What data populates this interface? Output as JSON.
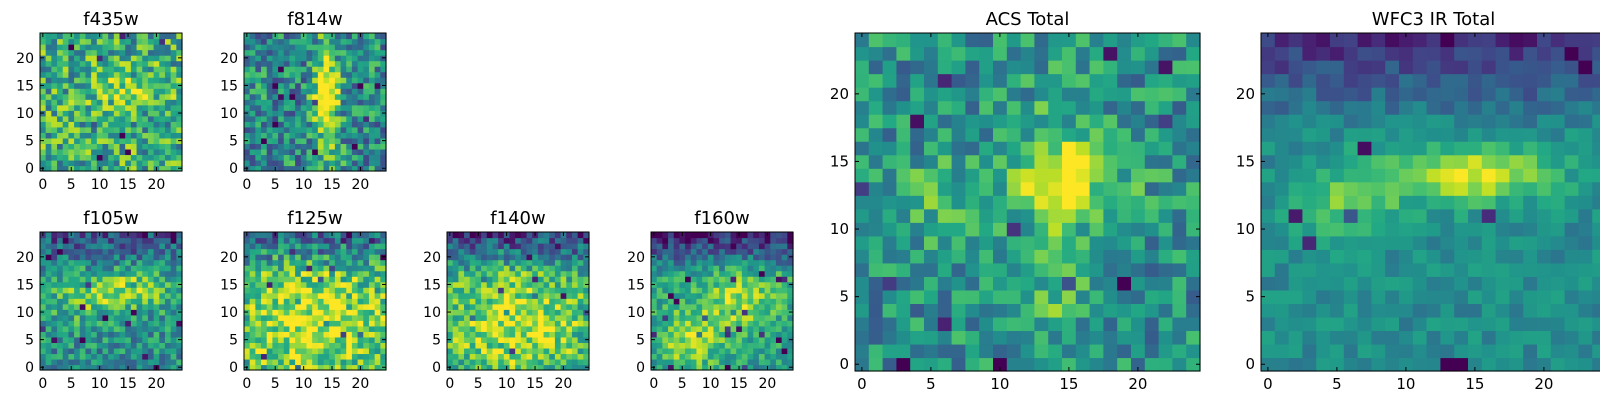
{
  "chart_data": [
    {
      "type": "heatmap",
      "title": "f435w",
      "xlim": [
        0,
        24
      ],
      "ylim": [
        0,
        24
      ],
      "xticks": [
        "0",
        "5",
        "10",
        "15",
        "20"
      ],
      "yticks": [
        "0",
        "5",
        "10",
        "15",
        "20"
      ],
      "colormap": "viridis",
      "grid": false,
      "features": [
        {
          "cx": 15,
          "cy": 14,
          "sx": 4,
          "sy": 2,
          "amp": 0.25
        }
      ],
      "base": 0.62,
      "noise": 0.3,
      "seed": 11
    },
    {
      "type": "heatmap",
      "title": "f814w",
      "xlim": [
        0,
        24
      ],
      "ylim": [
        0,
        24
      ],
      "xticks": [
        "0",
        "5",
        "10",
        "15",
        "20"
      ],
      "yticks": [
        "0",
        "5",
        "10",
        "15",
        "20"
      ],
      "colormap": "viridis",
      "grid": false,
      "features": [
        {
          "cx": 14,
          "cy": 12,
          "sx": 1.5,
          "sy": 9,
          "amp": 0.45
        },
        {
          "cx": 14,
          "cy": 14,
          "sx": 2,
          "sy": 2,
          "amp": 0.25
        }
      ],
      "base": 0.48,
      "noise": 0.28,
      "seed": 23
    },
    {
      "type": "heatmap",
      "title": "f105w",
      "xlim": [
        0,
        24
      ],
      "ylim": [
        0,
        24
      ],
      "xticks": [
        "0",
        "5",
        "10",
        "15",
        "20"
      ],
      "yticks": [
        "0",
        "5",
        "10",
        "15",
        "20"
      ],
      "colormap": "viridis",
      "grid": false,
      "features": [
        {
          "cx": 15,
          "cy": 14,
          "sx": 5,
          "sy": 2.5,
          "amp": 0.35
        },
        {
          "cx": 6,
          "cy": 12,
          "sx": 4,
          "sy": 3,
          "amp": 0.2
        }
      ],
      "base": 0.5,
      "noise": 0.22,
      "topdark": 0.25,
      "seed": 37
    },
    {
      "type": "heatmap",
      "title": "f125w",
      "xlim": [
        0,
        24
      ],
      "ylim": [
        0,
        24
      ],
      "xticks": [
        "0",
        "5",
        "10",
        "15",
        "20"
      ],
      "yticks": [
        "0",
        "5",
        "10",
        "15",
        "20"
      ],
      "colormap": "viridis",
      "grid": false,
      "features": [
        {
          "cx": 12,
          "cy": 8,
          "sx": 9,
          "sy": 7,
          "amp": 0.3
        }
      ],
      "base": 0.62,
      "noise": 0.26,
      "topdark": 0.3,
      "seed": 41
    },
    {
      "type": "heatmap",
      "title": "f140w",
      "xlim": [
        0,
        24
      ],
      "ylim": [
        0,
        24
      ],
      "xticks": [
        "0",
        "5",
        "10",
        "15",
        "20"
      ],
      "yticks": [
        "0",
        "5",
        "10",
        "15",
        "20"
      ],
      "colormap": "viridis",
      "grid": false,
      "features": [
        {
          "cx": 12,
          "cy": 8,
          "sx": 9,
          "sy": 7,
          "amp": 0.32
        }
      ],
      "base": 0.58,
      "noise": 0.24,
      "topdark": 0.4,
      "seed": 53
    },
    {
      "type": "heatmap",
      "title": "f160w",
      "xlim": [
        0,
        24
      ],
      "ylim": [
        0,
        24
      ],
      "xticks": [
        "0",
        "5",
        "10",
        "15",
        "20"
      ],
      "yticks": [
        "0",
        "5",
        "10",
        "15",
        "20"
      ],
      "colormap": "viridis",
      "grid": false,
      "features": [
        {
          "cx": 15,
          "cy": 12,
          "sx": 5,
          "sy": 4,
          "amp": 0.3
        },
        {
          "cx": 6,
          "cy": 5,
          "sx": 4,
          "sy": 4,
          "amp": 0.3
        }
      ],
      "base": 0.55,
      "noise": 0.18,
      "topdark": 0.45,
      "seed": 67
    },
    {
      "type": "heatmap",
      "title": "ACS Total",
      "xlim": [
        0,
        24
      ],
      "ylim": [
        0,
        24
      ],
      "xticks": [
        "0",
        "5",
        "10",
        "15",
        "20"
      ],
      "yticks": [
        "0",
        "5",
        "10",
        "15",
        "20"
      ],
      "colormap": "viridis",
      "grid": false,
      "features": [
        {
          "cx": 15,
          "cy": 14,
          "sx": 3,
          "sy": 2,
          "amp": 0.4
        },
        {
          "cx": 14,
          "cy": 10,
          "sx": 1.5,
          "sy": 8,
          "amp": 0.2
        },
        {
          "cx": 6,
          "cy": 12,
          "sx": 3,
          "sy": 2,
          "amp": 0.2
        }
      ],
      "base": 0.5,
      "noise": 0.22,
      "seed": 79
    },
    {
      "type": "heatmap",
      "title": "WFC3 IR Total",
      "xlim": [
        0,
        24
      ],
      "ylim": [
        0,
        24
      ],
      "xticks": [
        "0",
        "5",
        "10",
        "15",
        "20"
      ],
      "yticks": [
        "0",
        "5",
        "10",
        "15",
        "20"
      ],
      "colormap": "viridis",
      "grid": false,
      "features": [
        {
          "cx": 15,
          "cy": 14,
          "sx": 4,
          "sy": 1.5,
          "amp": 0.45
        },
        {
          "cx": 6,
          "cy": 12,
          "sx": 2.5,
          "sy": 2,
          "amp": 0.3
        }
      ],
      "base": 0.48,
      "noise": 0.1,
      "topdark": 0.35,
      "seed": 97
    }
  ]
}
